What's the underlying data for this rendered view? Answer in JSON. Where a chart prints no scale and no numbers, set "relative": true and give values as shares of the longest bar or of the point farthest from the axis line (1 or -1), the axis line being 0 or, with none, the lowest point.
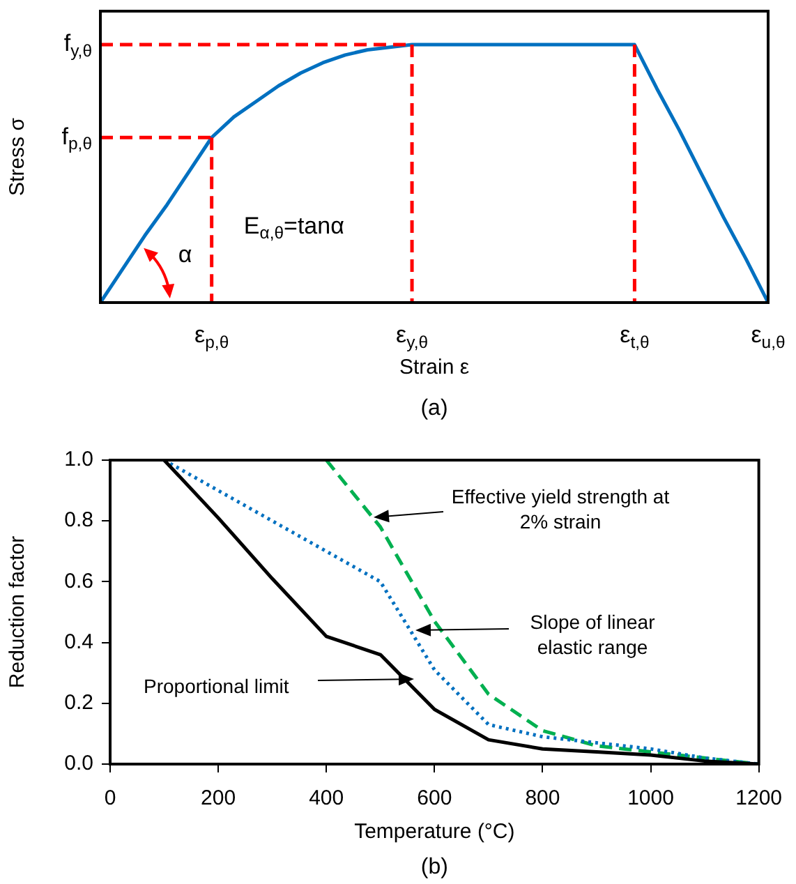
{
  "chart_data": [
    {
      "type": "line",
      "relative": true,
      "xlabel": "Strain ε",
      "ylabel": "Stress σ",
      "categories": [
        null,
        null,
        null,
        null,
        null,
        "ε$_{p,θ}$",
        null,
        null,
        null,
        null,
        null,
        null,
        null,
        null,
        "ε$_{y,θ}$",
        null,
        null,
        null,
        null,
        null,
        null,
        null,
        null,
        null,
        "ε$_{t,θ}$",
        null,
        null,
        null,
        null,
        null,
        "ε$_{u,θ}$"
      ],
      "grid": false,
      "legend": false,
      "marker": "none",
      "series": [
        {
          "color": "#ff0000",
          "line_style": "dashed",
          "values": [
            0.64,
            0.64,
            0.64,
            0.64,
            0.64,
            0.64,
            null,
            null,
            null,
            null,
            null,
            null,
            null,
            null,
            null,
            null,
            null,
            null,
            null,
            null,
            null,
            null,
            null,
            null,
            null,
            null,
            null,
            null,
            null,
            null,
            null
          ]
        },
        {
          "color": "#ff0000",
          "line_style": "dashed",
          "x": [
            "ε$_{p,θ}$",
            "ε$_{p,θ}$"
          ],
          "values": [
            0.64,
            0
          ]
        },
        {
          "color": "#ff0000",
          "line_style": "dashed",
          "values": [
            1,
            1,
            1,
            1,
            1,
            1,
            1,
            1,
            1,
            1,
            1,
            1,
            1,
            1,
            1,
            null,
            null,
            null,
            null,
            null,
            null,
            null,
            null,
            null,
            null,
            null,
            null,
            null,
            null,
            null,
            null
          ]
        },
        {
          "color": "#ff0000",
          "line_style": "dashed",
          "x": [
            "ε$_{y,θ}$",
            "ε$_{y,θ}$"
          ],
          "values": [
            1,
            0
          ]
        },
        {
          "color": "#ff0000",
          "line_style": "dashed",
          "x": [
            "ε$_{t,θ}$",
            "ε$_{t,θ}$"
          ],
          "values": [
            1,
            0
          ]
        },
        {
          "color": "#0070c0",
          "line_style": "solid",
          "values": [
            0,
            0.13,
            0.26,
            0.38,
            0.51,
            0.64,
            0.72,
            0.78,
            0.84,
            0.89,
            0.93,
            0.96,
            0.98,
            0.99,
            1,
            1,
            1,
            1,
            1,
            1,
            1,
            1,
            1,
            1,
            1,
            0.83,
            0.67,
            0.5,
            0.33,
            0.17,
            0
          ]
        }
      ],
      "annotations": [
        "f$_{p,θ}$",
        "f$_{y,θ}$",
        "E$_{α,θ}$=tanα",
        "α",
        "(a)"
      ]
    },
    {
      "type": "line",
      "xlabel": "Temperature (°C)",
      "ylabel": "Reduction factor",
      "xlim": [
        0,
        1200
      ],
      "ylim": [
        0,
        1
      ],
      "xticks": [
        0,
        200,
        400,
        600,
        800,
        1000,
        1200
      ],
      "yticks": [
        {
          "value": 0,
          "label": "0.0"
        },
        {
          "value": 0.2,
          "label": "0.2"
        },
        {
          "value": 0.4,
          "label": "0.4"
        },
        {
          "value": 0.6,
          "label": "0.6"
        },
        {
          "value": 0.8,
          "label": "0.8"
        },
        {
          "value": 1,
          "label": "1.0"
        }
      ],
      "grid": false,
      "legend": false,
      "marker": "none",
      "series": [
        {
          "color": "#000000",
          "line_style": "solid",
          "x": [
            100,
            200,
            300,
            400,
            500,
            600,
            700,
            800,
            900,
            1000,
            1100,
            1200
          ],
          "values": [
            1,
            0.81,
            0.61,
            0.42,
            0.36,
            0.18,
            0.08,
            0.05,
            0.04,
            0.03,
            0.01,
            0
          ]
        },
        {
          "color": "#0070c0",
          "line_style": "dotted",
          "x": [
            100,
            200,
            300,
            400,
            500,
            600,
            700,
            800,
            900,
            1000,
            1100,
            1200
          ],
          "values": [
            1,
            0.9,
            0.8,
            0.7,
            0.6,
            0.31,
            0.13,
            0.09,
            0.07,
            0.05,
            0.02,
            0
          ]
        },
        {
          "color": "#00b050",
          "line_style": "dashed",
          "x": [
            400,
            500,
            600,
            700,
            800,
            900,
            1000,
            1100,
            1200
          ],
          "values": [
            1,
            0.78,
            0.47,
            0.23,
            0.11,
            0.06,
            0.04,
            0.02,
            0
          ]
        }
      ],
      "annotations": [
        "Proportional limit",
        "Slope of linear elastic range",
        "Effective yield strength at 2% strain",
        "(b)"
      ]
    }
  ]
}
